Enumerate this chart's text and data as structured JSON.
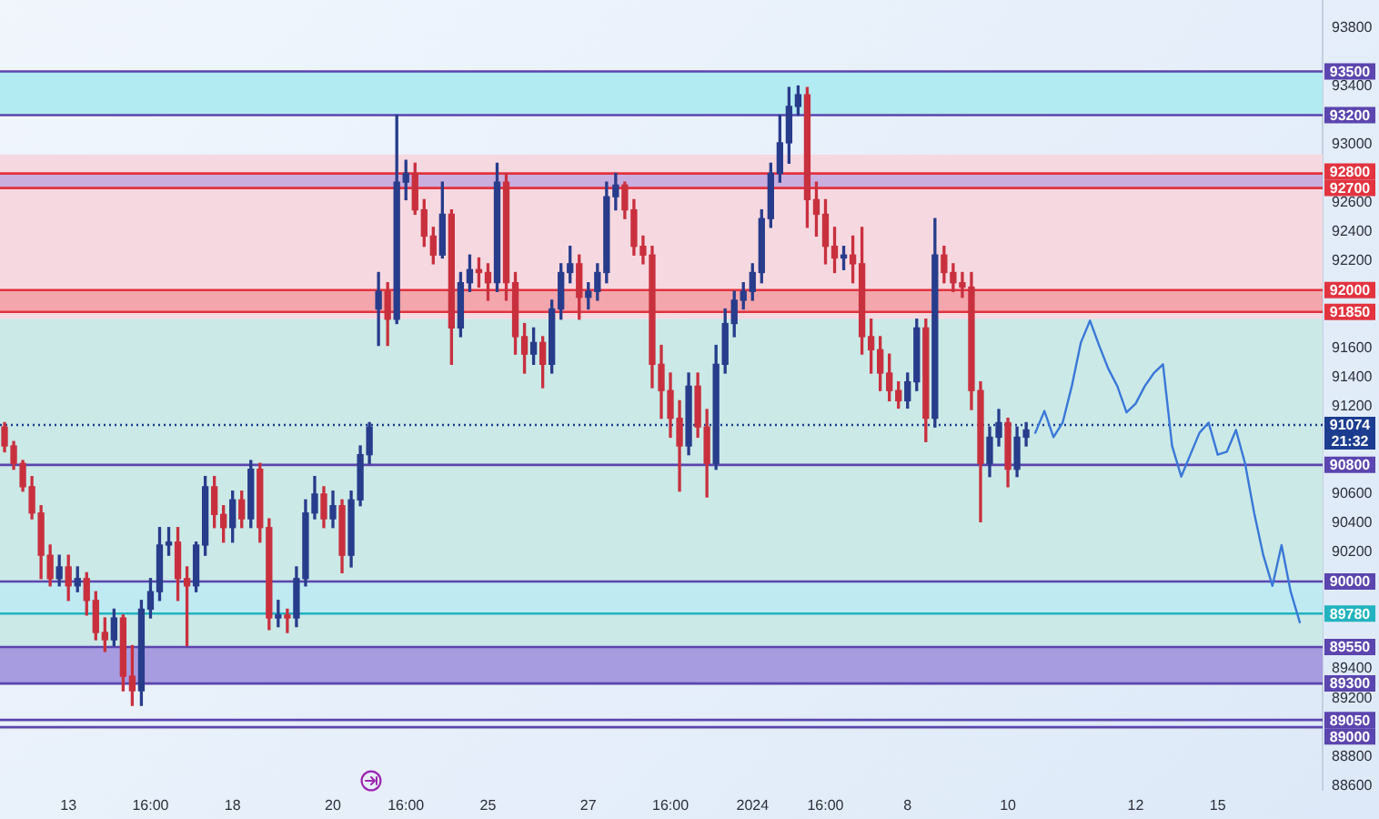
{
  "chart_data": {
    "type": "candlestick",
    "categories": [
      null,
      null,
      null,
      null,
      null,
      null,
      null,
      "13",
      null,
      null,
      null,
      null,
      null,
      null,
      null,
      null,
      "16:00",
      null,
      null,
      null,
      null,
      null,
      null,
      null,
      null,
      "18",
      null,
      null,
      null,
      null,
      null,
      null,
      null,
      null,
      null,
      null,
      "20",
      null,
      null,
      null,
      null,
      null,
      null,
      null,
      "16:00",
      null,
      null,
      null,
      null,
      null,
      null,
      null,
      null,
      "25",
      null,
      null,
      null,
      null,
      null,
      null,
      null,
      null,
      null,
      null,
      "27",
      null,
      null,
      null,
      null,
      null,
      null,
      null,
      null,
      "16:00",
      null,
      null,
      null,
      null,
      null,
      null,
      null,
      null,
      "2024",
      null,
      null,
      null,
      null,
      null,
      null,
      null,
      "16:00",
      null,
      null,
      null,
      null,
      null,
      null,
      null,
      null,
      "8",
      null,
      null,
      null,
      null,
      null,
      null,
      null,
      null,
      null,
      null,
      "10",
      null,
      null,
      null,
      null,
      null,
      null,
      null,
      null,
      null,
      null,
      null,
      null,
      null,
      "12",
      null,
      null,
      null,
      null,
      null,
      null,
      null,
      null,
      "15",
      null,
      null,
      null,
      null,
      null,
      null,
      null,
      null,
      null,
      null,
      null
    ],
    "ohlc": [
      [
        91060,
        91090,
        90890,
        90930
      ],
      [
        90930,
        90960,
        90770,
        90810
      ],
      [
        90810,
        90830,
        90620,
        90650
      ],
      [
        90650,
        90720,
        90430,
        90470
      ],
      [
        90470,
        90520,
        90020,
        90180
      ],
      [
        90180,
        90250,
        89970,
        90020
      ],
      [
        90020,
        90180,
        89970,
        90100
      ],
      [
        90100,
        90180,
        89870,
        89970
      ],
      [
        89970,
        90100,
        89930,
        90020
      ],
      [
        90020,
        90060,
        89770,
        89870
      ],
      [
        89870,
        89930,
        89600,
        89650
      ],
      [
        89650,
        89750,
        89520,
        89600
      ],
      [
        89600,
        89810,
        89560,
        89750
      ],
      [
        89750,
        89770,
        89250,
        89350
      ],
      [
        89350,
        89560,
        89150,
        89250
      ],
      [
        89250,
        89870,
        89150,
        89810
      ],
      [
        89810,
        90020,
        89750,
        89930
      ],
      [
        89930,
        90370,
        89870,
        90250
      ],
      [
        90250,
        90370,
        90180,
        90270
      ],
      [
        90270,
        90370,
        89870,
        90020
      ],
      [
        90020,
        90100,
        89560,
        89970
      ],
      [
        89970,
        90270,
        89930,
        90250
      ],
      [
        90250,
        90720,
        90180,
        90650
      ],
      [
        90650,
        90720,
        90370,
        90460
      ],
      [
        90460,
        90520,
        90270,
        90370
      ],
      [
        90370,
        90620,
        90270,
        90560
      ],
      [
        90560,
        90620,
        90370,
        90430
      ],
      [
        90430,
        90830,
        90370,
        90770
      ],
      [
        90770,
        90810,
        90270,
        90370
      ],
      [
        90370,
        90430,
        89670,
        89750
      ],
      [
        89750,
        89870,
        89690,
        89770
      ],
      [
        89770,
        89810,
        89650,
        89750
      ],
      [
        89750,
        90100,
        89690,
        90020
      ],
      [
        90020,
        90560,
        89970,
        90470
      ],
      [
        90470,
        90720,
        90430,
        90600
      ],
      [
        90600,
        90650,
        90370,
        90430
      ],
      [
        90430,
        90620,
        90370,
        90520
      ],
      [
        90520,
        90560,
        90060,
        90180
      ],
      [
        90180,
        90620,
        90100,
        90560
      ],
      [
        90560,
        90930,
        90520,
        90870
      ],
      [
        90870,
        91090,
        90810,
        91060
      ],
      [
        91870,
        92120,
        91620,
        91990
      ],
      [
        91990,
        92050,
        91620,
        91800
      ],
      [
        91800,
        93200,
        91770,
        92740
      ],
      [
        92740,
        92890,
        92620,
        92800
      ],
      [
        92800,
        92870,
        92520,
        92550
      ],
      [
        92550,
        92620,
        92300,
        92370
      ],
      [
        92370,
        92430,
        92180,
        92240
      ],
      [
        92240,
        92740,
        92220,
        92520
      ],
      [
        92520,
        92550,
        91490,
        91740
      ],
      [
        91740,
        92120,
        91680,
        92050
      ],
      [
        92050,
        92240,
        91990,
        92140
      ],
      [
        92140,
        92220,
        92020,
        92120
      ],
      [
        92120,
        92180,
        91930,
        92050
      ],
      [
        92050,
        92870,
        91990,
        92740
      ],
      [
        92740,
        92800,
        91930,
        92050
      ],
      [
        92050,
        92120,
        91560,
        91680
      ],
      [
        91680,
        91770,
        91430,
        91560
      ],
      [
        91560,
        91740,
        91490,
        91640
      ],
      [
        91640,
        91680,
        91330,
        91490
      ],
      [
        91490,
        91930,
        91430,
        91870
      ],
      [
        91870,
        92180,
        91800,
        92120
      ],
      [
        92120,
        92300,
        92050,
        92180
      ],
      [
        92180,
        92240,
        91800,
        91950
      ],
      [
        91950,
        92050,
        91870,
        91990
      ],
      [
        91990,
        92180,
        91930,
        92120
      ],
      [
        92120,
        92740,
        92050,
        92640
      ],
      [
        92640,
        92800,
        92550,
        92720
      ],
      [
        92720,
        92740,
        92490,
        92550
      ],
      [
        92550,
        92620,
        92240,
        92300
      ],
      [
        92300,
        92370,
        92180,
        92240
      ],
      [
        92240,
        92300,
        91330,
        91490
      ],
      [
        91490,
        91620,
        91120,
        91310
      ],
      [
        91310,
        91430,
        90990,
        91120
      ],
      [
        91120,
        91240,
        90620,
        90930
      ],
      [
        90930,
        91430,
        90870,
        91340
      ],
      [
        91340,
        91430,
        90990,
        91060
      ],
      [
        91060,
        91180,
        90580,
        90810
      ],
      [
        90810,
        91620,
        90770,
        91490
      ],
      [
        91490,
        91870,
        91430,
        91770
      ],
      [
        91770,
        91990,
        91680,
        91930
      ],
      [
        91930,
        92050,
        91870,
        91990
      ],
      [
        91990,
        92180,
        91930,
        92120
      ],
      [
        92120,
        92550,
        92050,
        92490
      ],
      [
        92490,
        92870,
        92430,
        92800
      ],
      [
        92800,
        93200,
        92740,
        93010
      ],
      [
        93010,
        93390,
        92870,
        93260
      ],
      [
        93260,
        93400,
        93200,
        93340
      ],
      [
        93340,
        93390,
        92430,
        92620
      ],
      [
        92620,
        92740,
        92370,
        92520
      ],
      [
        92520,
        92620,
        92180,
        92300
      ],
      [
        92300,
        92430,
        92120,
        92220
      ],
      [
        92220,
        92300,
        92140,
        92240
      ],
      [
        92240,
        92370,
        92050,
        92180
      ],
      [
        92180,
        92430,
        91560,
        91680
      ],
      [
        91680,
        91800,
        91430,
        91590
      ],
      [
        91590,
        91680,
        91310,
        91430
      ],
      [
        91430,
        91560,
        91240,
        91310
      ],
      [
        91310,
        91370,
        91190,
        91240
      ],
      [
        91240,
        91430,
        91190,
        91370
      ],
      [
        91370,
        91800,
        91310,
        91740
      ],
      [
        91740,
        91800,
        90960,
        91120
      ],
      [
        91120,
        92490,
        91060,
        92240
      ],
      [
        92240,
        92300,
        92050,
        92120
      ],
      [
        92120,
        92180,
        91990,
        92050
      ],
      [
        92050,
        92120,
        91950,
        92020
      ],
      [
        92020,
        92120,
        91180,
        91310
      ],
      [
        91310,
        91370,
        90410,
        90810
      ],
      [
        90810,
        91060,
        90720,
        90990
      ],
      [
        90990,
        91180,
        90930,
        91090
      ],
      [
        91090,
        91120,
        90650,
        90770
      ],
      [
        90770,
        91060,
        90720,
        90990
      ],
      [
        90990,
        91090,
        90930,
        91040
      ],
      null,
      null,
      null,
      null,
      null,
      null,
      null,
      null,
      null,
      null,
      null,
      null,
      null,
      null,
      null,
      null,
      null,
      null,
      null,
      null,
      null,
      null,
      null,
      null,
      null,
      null,
      null,
      null,
      null,
      null,
      null,
      null
    ],
    "colors": [
      "#c9303e",
      "#c9303e",
      "#c9303e",
      "#c9303e",
      "#c9303e",
      "#c9303e",
      "#283c8c",
      "#c9303e",
      "#283c8c",
      "#c9303e",
      "#c9303e",
      "#c9303e",
      "#283c8c",
      "#c9303e",
      "#c9303e",
      "#283c8c",
      "#283c8c",
      "#283c8c",
      "#283c8c",
      "#c9303e",
      "#c9303e",
      "#283c8c",
      "#283c8c",
      "#c9303e",
      "#c9303e",
      "#283c8c",
      "#c9303e",
      "#283c8c",
      "#c9303e",
      "#c9303e",
      "#283c8c",
      "#c9303e",
      "#283c8c",
      "#283c8c",
      "#283c8c",
      "#c9303e",
      "#283c8c",
      "#c9303e",
      "#283c8c",
      "#283c8c",
      "#283c8c",
      "#283c8c",
      "#c9303e",
      "#283c8c",
      "#283c8c",
      "#c9303e",
      "#c9303e",
      "#c9303e",
      "#283c8c",
      "#c9303e",
      "#283c8c",
      "#283c8c",
      "#c9303e",
      "#c9303e",
      "#283c8c",
      "#c9303e",
      "#c9303e",
      "#c9303e",
      "#283c8c",
      "#c9303e",
      "#283c8c",
      "#283c8c",
      "#283c8c",
      "#c9303e",
      "#283c8c",
      "#283c8c",
      "#283c8c",
      "#283c8c",
      "#c9303e",
      "#c9303e",
      "#c9303e",
      "#c9303e",
      "#c9303e",
      "#c9303e",
      "#c9303e",
      "#283c8c",
      "#c9303e",
      "#c9303e",
      "#283c8c",
      "#283c8c",
      "#283c8c",
      "#283c8c",
      "#283c8c",
      "#283c8c",
      "#283c8c",
      "#283c8c",
      "#283c8c",
      "#283c8c",
      "#c9303e",
      "#c9303e",
      "#c9303e",
      "#c9303e",
      "#283c8c",
      "#c9303e",
      "#c9303e",
      "#c9303e",
      "#c9303e",
      "#c9303e",
      "#c9303e",
      "#283c8c",
      "#283c8c",
      "#c9303e",
      "#283c8c",
      "#c9303e",
      "#c9303e",
      "#c9303e",
      "#c9303e",
      "#c9303e",
      "#283c8c",
      "#283c8c",
      "#c9303e",
      "#283c8c",
      "#283c8c",
      null,
      null,
      null,
      null,
      null,
      null,
      null,
      null,
      null,
      null,
      null,
      null,
      null,
      null,
      null,
      null,
      null,
      null,
      null,
      null,
      null,
      null,
      null,
      null,
      null,
      null,
      null,
      null,
      null,
      null,
      null,
      null
    ],
    "series": [
      {
        "type": "line",
        "color": "#3a78d8",
        "values": [
          null,
          null,
          null,
          null,
          null,
          null,
          null,
          null,
          null,
          null,
          null,
          null,
          null,
          null,
          null,
          null,
          null,
          null,
          null,
          null,
          null,
          null,
          null,
          null,
          null,
          null,
          null,
          null,
          null,
          null,
          null,
          null,
          null,
          null,
          null,
          null,
          null,
          null,
          null,
          null,
          null,
          null,
          null,
          null,
          null,
          null,
          null,
          null,
          null,
          null,
          null,
          null,
          null,
          null,
          null,
          null,
          null,
          null,
          null,
          null,
          null,
          null,
          null,
          null,
          null,
          null,
          null,
          null,
          null,
          null,
          null,
          null,
          null,
          null,
          null,
          null,
          null,
          null,
          null,
          null,
          null,
          null,
          null,
          null,
          null,
          null,
          null,
          null,
          null,
          null,
          null,
          null,
          null,
          null,
          null,
          null,
          null,
          null,
          null,
          null,
          null,
          null,
          null,
          null,
          null,
          null,
          null,
          null,
          null,
          null,
          null,
          null,
          null,
          91020,
          91170,
          90990,
          91090,
          91340,
          91640,
          91790,
          91620,
          91460,
          91340,
          91160,
          91220,
          91340,
          91430,
          91490,
          90930,
          90720,
          90870,
          91020,
          91090,
          90870,
          90890,
          91040,
          90810,
          90470,
          90180,
          89970,
          90250,
          89930,
          89720,
          null,
          null
        ]
      }
    ],
    "ylim": [
      88570,
      93990
    ],
    "yticks": [
      88600,
      88800,
      89200,
      89400,
      90200,
      90400,
      90600,
      91200,
      91400,
      91600,
      92200,
      92400,
      92600,
      93000,
      93400,
      93800
    ],
    "bands": [
      {
        "axis": "y",
        "from": 91800,
        "to": 92930,
        "color": "#f6d9e0"
      },
      {
        "axis": "y",
        "from": 89310,
        "to": 91800,
        "color": "#cbe9e7"
      },
      {
        "axis": "y",
        "from": 93200,
        "to": 93500,
        "color": "#b3ebf2"
      },
      {
        "axis": "y",
        "from": 92700,
        "to": 92800,
        "color": "#c9aede"
      },
      {
        "axis": "y",
        "from": 91850,
        "to": 92000,
        "color": "#f3a6ac"
      },
      {
        "axis": "y",
        "from": 89780,
        "to": 90000,
        "color": "#bfeaf2"
      },
      {
        "axis": "y",
        "from": 89300,
        "to": 89550,
        "color": "#a89ce0"
      }
    ],
    "ref_lines": [
      {
        "axis": "y",
        "value": 93500,
        "label": "93500",
        "color": "#5b45ae"
      },
      {
        "axis": "y",
        "value": 93200,
        "label": "93200",
        "color": "#5b45ae"
      },
      {
        "axis": "y",
        "value": 92800,
        "label": "92800",
        "color": "#e2333f"
      },
      {
        "axis": "y",
        "value": 92700,
        "label": "92700",
        "color": "#e2333f"
      },
      {
        "axis": "y",
        "value": 92000,
        "label": "92000",
        "color": "#e2333f"
      },
      {
        "axis": "y",
        "value": 91850,
        "label": "91850",
        "color": "#e2333f"
      },
      {
        "axis": "y",
        "value": 91074,
        "label": "91074\n21:32",
        "color": "#1c3d8f",
        "line_style": "dotted"
      },
      {
        "axis": "y",
        "value": 90800,
        "label": "90800",
        "color": "#5b45ae"
      },
      {
        "axis": "y",
        "value": 90000,
        "label": "90000",
        "color": "#5b45ae"
      },
      {
        "axis": "y",
        "value": 89780,
        "label": "89780",
        "color": "#22b3bf"
      },
      {
        "axis": "y",
        "value": 89550,
        "label": "89550",
        "color": "#5b45ae"
      },
      {
        "axis": "y",
        "value": 89300,
        "label": "89300",
        "color": "#5b45ae"
      },
      {
        "axis": "y",
        "value": 89050,
        "label": "89050",
        "color": "#5b45ae"
      },
      {
        "axis": "y",
        "value": 89000,
        "label": "89000",
        "color": "#5b45ae"
      }
    ]
  }
}
